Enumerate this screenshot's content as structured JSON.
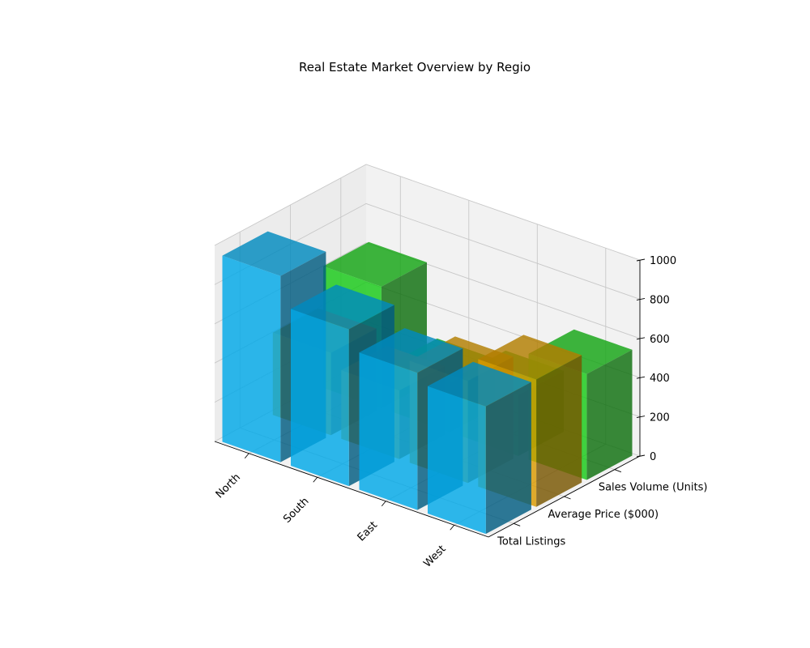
{
  "chart_data": {
    "type": "bar3d",
    "title": "Real Estate Market Overview by Regio",
    "categories": [
      "North",
      "South",
      "East",
      "West"
    ],
    "series": [
      {
        "name": "Total Listings",
        "values": [
          950,
          800,
          700,
          650
        ],
        "color": "#00a8e8"
      },
      {
        "name": "Average Price ($000)",
        "values": [
          420,
          350,
          520,
          650
        ],
        "color": "#d99a00"
      },
      {
        "name": "Sales Volume (Units)",
        "values": [
          620,
          250,
          310,
          540
        ],
        "color": "#17c917"
      }
    ],
    "zlim": [
      0,
      1000
    ],
    "zticks": [
      "0",
      "200",
      "400",
      "600",
      "800",
      "1000"
    ],
    "grid": true
  }
}
